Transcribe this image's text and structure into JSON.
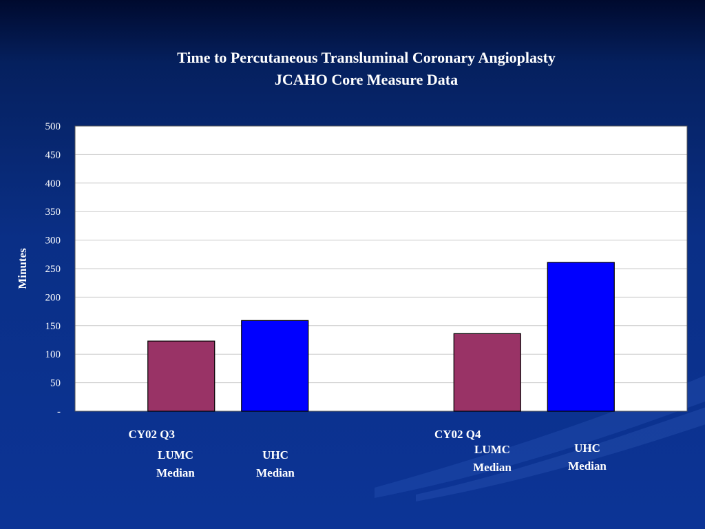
{
  "slide": {
    "title_line1": "Time to Percutaneous Transluminal Coronary Angioplasty",
    "title_line2": "JCAHO Core Measure Data"
  },
  "colors": {
    "lumc": "#993366",
    "uhc": "#0000ff",
    "plot_bg": "#ffffff",
    "gridline": "#c8c8c8"
  },
  "bar_labels": [
    {
      "line1": "LUMC",
      "line2": "Median"
    },
    {
      "line1": "UHC",
      "line2": "Median"
    },
    {
      "line1": "LUMC",
      "line2": "Median"
    },
    {
      "line1": "UHC",
      "line2": "Median"
    }
  ],
  "chart_data": {
    "type": "bar",
    "title": "Time to Percutaneous Transluminal Coronary Angioplasty",
    "subtitle": "JCAHO Core Measure Data",
    "xlabel": "",
    "ylabel": "Minutes",
    "categories": [
      "CY02  Q3",
      "CY02  Q4"
    ],
    "series": [
      {
        "name": "LUMC Median",
        "values": [
          123,
          136
        ]
      },
      {
        "name": "UHC Median",
        "values": [
          159,
          261
        ]
      }
    ],
    "ylim": [
      0,
      500
    ],
    "yticks": [
      0,
      50,
      100,
      150,
      200,
      250,
      300,
      350,
      400,
      450,
      500
    ],
    "ytick_labels": [
      "-",
      "50",
      "100",
      "150",
      "200",
      "250",
      "300",
      "350",
      "400",
      "450",
      "500"
    ],
    "grid": true,
    "legend": "none"
  }
}
